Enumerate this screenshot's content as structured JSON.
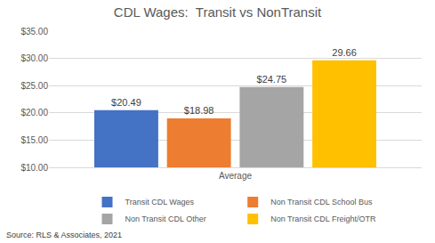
{
  "chart_data": {
    "type": "bar",
    "title": "CDL Wages:  Transit vs NonTransit",
    "categories": [
      "Average"
    ],
    "series": [
      {
        "name": "Transit CDL Wages",
        "color": "#4472c4",
        "values": [
          20.49
        ],
        "value_labels": [
          "$20.49"
        ]
      },
      {
        "name": "Non Transit CDL School Bus",
        "color": "#ed7d31",
        "values": [
          18.98
        ],
        "value_labels": [
          "$18.98"
        ]
      },
      {
        "name": "Non Transit CDL Other",
        "color": "#a5a5a5",
        "values": [
          24.75
        ],
        "value_labels": [
          "$24.75"
        ]
      },
      {
        "name": "Non Transit CDL Freight/OTR",
        "color": "#ffc000",
        "values": [
          29.66
        ],
        "value_labels": [
          "29.66"
        ]
      }
    ],
    "ylim": [
      10,
      35
    ],
    "yticks": [
      {
        "value": 10,
        "label": "$10.00"
      },
      {
        "value": 15,
        "label": "$15.00"
      },
      {
        "value": 20,
        "label": "$20.00"
      },
      {
        "value": 25,
        "label": "$25.00"
      },
      {
        "value": 30,
        "label": "$30.00"
      },
      {
        "value": 35,
        "label": "$35.00"
      }
    ],
    "grid": true,
    "legend": "bottom",
    "data_labels": true,
    "annotations": [
      "Source: RLS & Associates, 2021"
    ]
  }
}
